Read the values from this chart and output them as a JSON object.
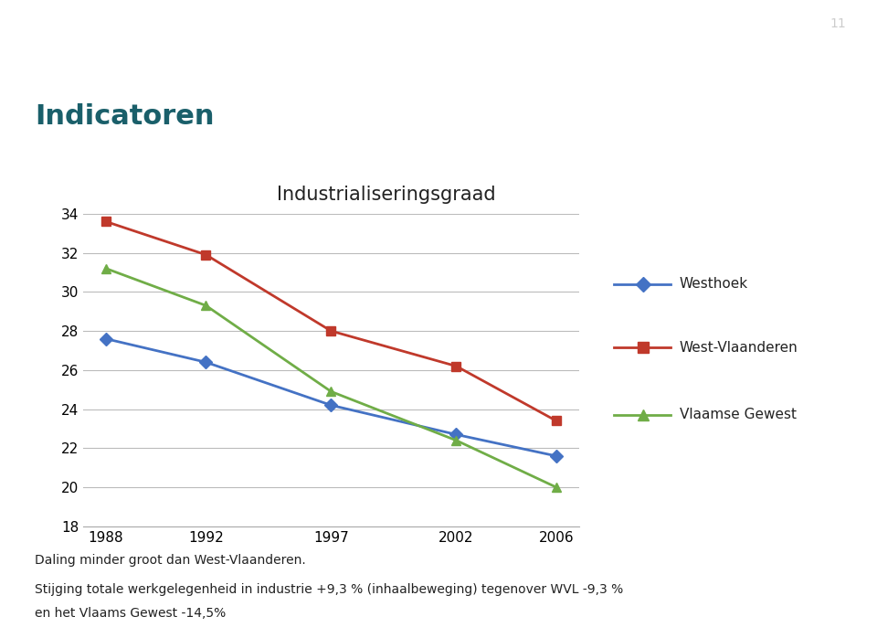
{
  "title": "Industrialiseringsgraad",
  "header_title": "Indicatoren",
  "page_number": "11",
  "header_dark_bg": "#1a7a7a",
  "header_light_bg": "#7bbcca",
  "header_right_dark": "#1a7a7a",
  "x_values": [
    1988,
    1992,
    1997,
    2002,
    2006
  ],
  "series": [
    {
      "name": "Westhoek",
      "color": "#4472c4",
      "marker": "D",
      "values": [
        27.6,
        26.4,
        24.2,
        22.7,
        21.6
      ]
    },
    {
      "name": "West-Vlaanderen",
      "color": "#c0392b",
      "marker": "s",
      "values": [
        33.6,
        31.9,
        28.0,
        26.2,
        23.4
      ]
    },
    {
      "name": "Vlaamse Gewest",
      "color": "#70ad47",
      "marker": "^",
      "values": [
        31.2,
        29.3,
        24.9,
        22.4,
        20.0
      ]
    }
  ],
  "ylim": [
    18,
    34
  ],
  "yticks": [
    18,
    20,
    22,
    24,
    26,
    28,
    30,
    32,
    34
  ],
  "footnote_line1": "Daling minder groot dan West-Vlaanderen.",
  "footnote_line2": "Stijging totale werkgelegenheid in industrie +9,3 % (inhaalbeweging) tegenover WVL -9,3 %",
  "footnote_line3": "en het Vlaams Gewest -14,5%",
  "background_color": "#ffffff",
  "plot_bg": "#ffffff",
  "grid_color": "#bbbbbb"
}
